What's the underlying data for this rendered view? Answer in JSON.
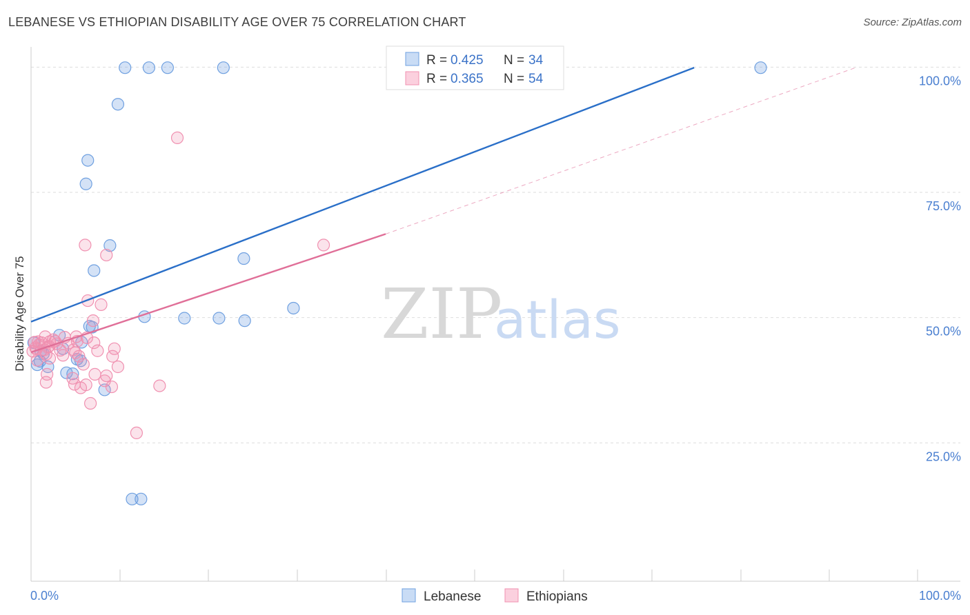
{
  "title": "LEBANESE VS ETHIOPIAN DISABILITY AGE OVER 75 CORRELATION CHART",
  "source": "Source: ZipAtlas.com",
  "watermark": {
    "zip": "ZIP",
    "atlas": "atlas"
  },
  "colors": {
    "blue": "#6fa0e0",
    "pink": "#f090b0",
    "blue_line": "#2a6fc8",
    "pink_line": "#e06f98",
    "grid": "#dddddd"
  },
  "chart_data": {
    "type": "scatter",
    "title": "LEBANESE VS ETHIOPIAN DISABILITY AGE OVER 75 CORRELATION CHART",
    "xlabel": "",
    "ylabel": "Disability Age Over 75",
    "xlim": [
      0,
      100
    ],
    "ylim": [
      0,
      105
    ],
    "x_tick_labels": [
      {
        "value": 0,
        "label": "0.0%"
      },
      {
        "value": 100,
        "label": "100.0%"
      }
    ],
    "y_tick_labels": [
      {
        "value": 25,
        "label": "25.0%"
      },
      {
        "value": 50,
        "label": "50.0%"
      },
      {
        "value": 75,
        "label": "75.0%"
      },
      {
        "value": 100,
        "label": "100.0%"
      }
    ],
    "legend": [
      {
        "name": "Lebanese",
        "r_label": "R =",
        "r": "0.425",
        "n_label": "N =",
        "n": "34"
      },
      {
        "name": "Ethiopians",
        "r_label": "R =",
        "r": "0.365",
        "n_label": "N =",
        "n": "54"
      }
    ],
    "series": [
      {
        "name": "Lebanese",
        "color": "#6fa0e0",
        "points": [
          [
            10.6,
            102.5
          ],
          [
            13.3,
            102.5
          ],
          [
            15.4,
            102.5
          ],
          [
            21.7,
            102.5
          ],
          [
            82.3,
            102.5
          ],
          [
            9.8,
            95.2
          ],
          [
            6.4,
            84.0
          ],
          [
            6.2,
            79.3
          ],
          [
            8.9,
            67.0
          ],
          [
            24.0,
            64.4
          ],
          [
            7.1,
            62.0
          ],
          [
            29.6,
            54.5
          ],
          [
            12.8,
            52.8
          ],
          [
            17.3,
            52.5
          ],
          [
            21.2,
            52.5
          ],
          [
            24.1,
            52.0
          ],
          [
            6.6,
            50.9
          ],
          [
            6.9,
            50.7
          ],
          [
            3.2,
            49.1
          ],
          [
            5.7,
            47.7
          ],
          [
            0.3,
            47.6
          ],
          [
            3.6,
            46.4
          ],
          [
            1.1,
            45.9
          ],
          [
            1.4,
            45.4
          ],
          [
            5.2,
            44.3
          ],
          [
            5.6,
            44.0
          ],
          [
            1.0,
            43.9
          ],
          [
            0.7,
            43.2
          ],
          [
            1.9,
            42.8
          ],
          [
            4.0,
            41.6
          ],
          [
            4.7,
            41.4
          ],
          [
            8.3,
            38.2
          ],
          [
            11.4,
            16.4
          ],
          [
            12.4,
            16.4
          ]
        ]
      },
      {
        "name": "Ethiopians",
        "color": "#f090b0",
        "points": [
          [
            16.5,
            88.5
          ],
          [
            33.0,
            67.1
          ],
          [
            6.1,
            67.1
          ],
          [
            8.5,
            65.1
          ],
          [
            6.4,
            56.0
          ],
          [
            7.9,
            55.2
          ],
          [
            7.0,
            52.0
          ],
          [
            1.6,
            48.8
          ],
          [
            5.1,
            48.8
          ],
          [
            3.8,
            48.7
          ],
          [
            6.3,
            48.6
          ],
          [
            2.5,
            48.2
          ],
          [
            2.1,
            47.8
          ],
          [
            5.2,
            47.9
          ],
          [
            0.8,
            47.8
          ],
          [
            1.2,
            47.6
          ],
          [
            0.4,
            47.7
          ],
          [
            4.2,
            47.5
          ],
          [
            7.1,
            47.6
          ],
          [
            2.9,
            47.4
          ],
          [
            0.9,
            47.2
          ],
          [
            2.0,
            46.9
          ],
          [
            1.9,
            46.7
          ],
          [
            0.6,
            46.3
          ],
          [
            1.5,
            46.2
          ],
          [
            3.3,
            46.1
          ],
          [
            4.8,
            46.2
          ],
          [
            9.4,
            46.4
          ],
          [
            0.2,
            45.9
          ],
          [
            1.7,
            45.3
          ],
          [
            5.0,
            45.6
          ],
          [
            3.6,
            45.1
          ],
          [
            5.4,
            44.9
          ],
          [
            9.2,
            44.9
          ],
          [
            2.1,
            44.5
          ],
          [
            0.7,
            44.1
          ],
          [
            5.9,
            43.3
          ],
          [
            9.8,
            42.8
          ],
          [
            1.8,
            41.3
          ],
          [
            7.2,
            41.3
          ],
          [
            8.5,
            41.0
          ],
          [
            4.7,
            40.5
          ],
          [
            8.3,
            40.0
          ],
          [
            1.7,
            39.7
          ],
          [
            4.9,
            39.3
          ],
          [
            6.2,
            39.2
          ],
          [
            14.5,
            39.0
          ],
          [
            5.6,
            38.6
          ],
          [
            9.1,
            38.8
          ],
          [
            6.7,
            35.5
          ],
          [
            11.9,
            29.6
          ],
          [
            0.5,
            46.6
          ],
          [
            2.7,
            47.9
          ],
          [
            7.5,
            46.0
          ]
        ]
      }
    ],
    "trend_lines": [
      {
        "name": "Lebanese",
        "solid": [
          [
            0,
            51.8
          ],
          [
            74.8,
            102.5
          ]
        ],
        "dashed": []
      },
      {
        "name": "Ethiopians",
        "solid": [
          [
            0,
            45.7
          ],
          [
            40,
            69.3
          ]
        ],
        "dashed": [
          [
            40,
            69.3
          ],
          [
            93,
            102.5
          ]
        ]
      }
    ]
  }
}
